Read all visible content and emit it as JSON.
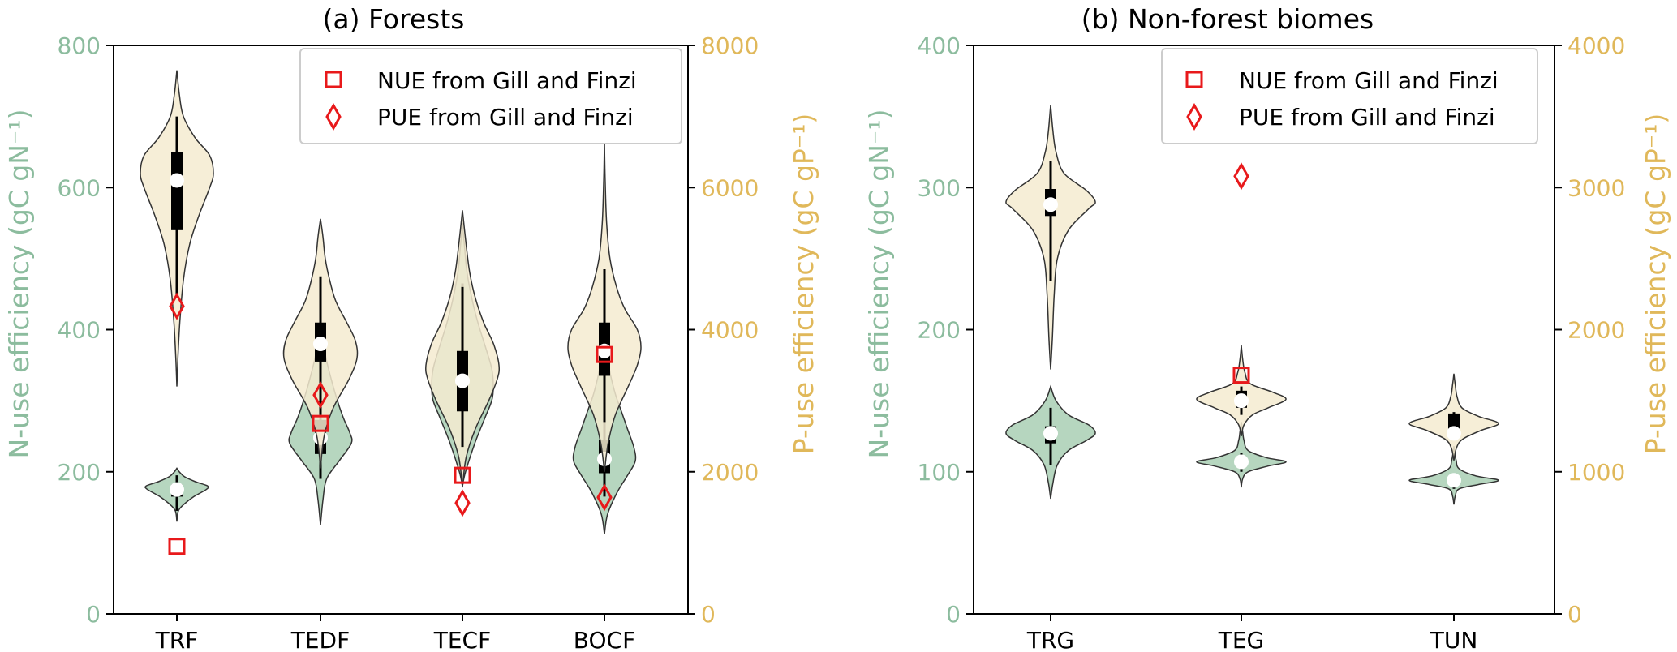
{
  "colors": {
    "nitrogen": "#8cbc9e",
    "phosphorus": "#e0b85a",
    "n_fill": "#a9cfb4",
    "p_fill": "#f5ebd0",
    "marker": "#e8191b",
    "axis": "#000000"
  },
  "legend": {
    "nue_label": "NUE from Gill and Finzi",
    "pue_label": "PUE from Gill and Finzi"
  },
  "chart_data": [
    {
      "type": "violin",
      "title": "(a) Forests",
      "categories": [
        "TRF",
        "TEDF",
        "TECF",
        "BOCF"
      ],
      "left_axis": {
        "label": "N-use efficiency (gC gN⁻¹)",
        "ylim": [
          0,
          800
        ],
        "ticks": [
          "0",
          "200",
          "400",
          "600",
          "800"
        ],
        "tick_values": [
          0,
          200,
          400,
          600,
          800
        ]
      },
      "right_axis": {
        "label": "P-use efficiency (gC gP⁻¹)",
        "ylim": [
          0,
          8000
        ],
        "ticks": [
          "0",
          "2000",
          "4000",
          "6000",
          "8000"
        ],
        "tick_values": [
          0,
          2000,
          4000,
          6000,
          8000
        ]
      },
      "legend_position": "top-right",
      "n_violins": [
        {
          "category": "TRF",
          "min": 130,
          "max": 205,
          "q1": 165,
          "q3": 182,
          "median": 175,
          "wlo": 145,
          "whi": 195,
          "shape": [
            [
              130,
              0
            ],
            [
              145,
              0.05
            ],
            [
              155,
              0.25
            ],
            [
              165,
              0.55
            ],
            [
              175,
              0.95
            ],
            [
              180,
              1.0
            ],
            [
              186,
              0.6
            ],
            [
              193,
              0.25
            ],
            [
              200,
              0.08
            ],
            [
              205,
              0
            ]
          ]
        },
        {
          "category": "TEDF",
          "min": 125,
          "max": 410,
          "q1": 225,
          "q3": 273,
          "median": 248,
          "wlo": 190,
          "whi": 330,
          "shape": [
            [
              125,
              0
            ],
            [
              160,
              0.08
            ],
            [
              190,
              0.2
            ],
            [
              215,
              0.6
            ],
            [
              240,
              1.0
            ],
            [
              255,
              0.95
            ],
            [
              275,
              0.75
            ],
            [
              300,
              0.55
            ],
            [
              330,
              0.35
            ],
            [
              360,
              0.18
            ],
            [
              390,
              0.07
            ],
            [
              410,
              0
            ]
          ]
        },
        {
          "category": "TECF",
          "min": 180,
          "max": 550,
          "q1": 290,
          "q3": 370,
          "median": 328,
          "wlo": 240,
          "whi": 465,
          "shape": [
            [
              180,
              0
            ],
            [
              200,
              0.1
            ],
            [
              240,
              0.4
            ],
            [
              275,
              0.72
            ],
            [
              300,
              0.95
            ],
            [
              320,
              1.0
            ],
            [
              345,
              0.95
            ],
            [
              375,
              0.75
            ],
            [
              410,
              0.5
            ],
            [
              445,
              0.3
            ],
            [
              480,
              0.15
            ],
            [
              515,
              0.07
            ],
            [
              550,
              0
            ]
          ]
        },
        {
          "category": "BOCF",
          "min": 112,
          "max": 410,
          "q1": 198,
          "q3": 245,
          "median": 218,
          "wlo": 165,
          "whi": 295,
          "shape": [
            [
              112,
              0
            ],
            [
              140,
              0.1
            ],
            [
              170,
              0.4
            ],
            [
              195,
              0.75
            ],
            [
              215,
              1.0
            ],
            [
              235,
              0.95
            ],
            [
              260,
              0.75
            ],
            [
              285,
              0.55
            ],
            [
              310,
              0.35
            ],
            [
              340,
              0.18
            ],
            [
              375,
              0.06
            ],
            [
              410,
              0
            ]
          ]
        }
      ],
      "p_violins": [
        {
          "category": "TRF",
          "min": 3200,
          "max": 7650,
          "q1": 5400,
          "q3": 6500,
          "median": 6100,
          "wlo": 4500,
          "whi": 7000,
          "shape": [
            [
              3200,
              0
            ],
            [
              3600,
              0.03
            ],
            [
              4100,
              0.08
            ],
            [
              4700,
              0.18
            ],
            [
              5200,
              0.35
            ],
            [
              5600,
              0.6
            ],
            [
              6000,
              0.9
            ],
            [
              6200,
              1.0
            ],
            [
              6450,
              0.9
            ],
            [
              6700,
              0.5
            ],
            [
              7000,
              0.18
            ],
            [
              7300,
              0.07
            ],
            [
              7650,
              0
            ]
          ]
        },
        {
          "category": "TEDF",
          "min": 2050,
          "max": 5560,
          "q1": 3550,
          "q3": 4100,
          "median": 3800,
          "wlo": 2800,
          "whi": 4750,
          "shape": [
            [
              2050,
              0
            ],
            [
              2500,
              0.1
            ],
            [
              2900,
              0.35
            ],
            [
              3300,
              0.78
            ],
            [
              3600,
              1.0
            ],
            [
              3850,
              0.95
            ],
            [
              4100,
              0.72
            ],
            [
              4400,
              0.42
            ],
            [
              4700,
              0.25
            ],
            [
              5000,
              0.13
            ],
            [
              5300,
              0.07
            ],
            [
              5560,
              0
            ]
          ]
        },
        {
          "category": "TECF",
          "min": 1780,
          "max": 5680,
          "q1": 2850,
          "q3": 3700,
          "median": 3280,
          "wlo": 2350,
          "whi": 4600,
          "shape": [
            [
              1780,
              0
            ],
            [
              2200,
              0.1
            ],
            [
              2600,
              0.35
            ],
            [
              3000,
              0.72
            ],
            [
              3300,
              0.95
            ],
            [
              3500,
              1.0
            ],
            [
              3800,
              0.85
            ],
            [
              4100,
              0.58
            ],
            [
              4450,
              0.35
            ],
            [
              4800,
              0.2
            ],
            [
              5200,
              0.1
            ],
            [
              5680,
              0
            ]
          ]
        },
        {
          "category": "BOCF",
          "min": 2000,
          "max": 6700,
          "q1": 3350,
          "q3": 4100,
          "median": 3700,
          "wlo": 2700,
          "whi": 4850,
          "shape": [
            [
              2000,
              0
            ],
            [
              2400,
              0.1
            ],
            [
              2800,
              0.3
            ],
            [
              3200,
              0.65
            ],
            [
              3500,
              0.9
            ],
            [
              3750,
              1.0
            ],
            [
              4000,
              0.9
            ],
            [
              4300,
              0.55
            ],
            [
              4600,
              0.33
            ],
            [
              5000,
              0.15
            ],
            [
              5500,
              0.06
            ],
            [
              6100,
              0.02
            ],
            [
              6700,
              0
            ]
          ]
        }
      ],
      "nue_markers": [
        {
          "category": "TRF",
          "value": 95
        },
        {
          "category": "TEDF",
          "value": 268
        },
        {
          "category": "TECF",
          "value": 195
        },
        {
          "category": "BOCF",
          "value": 365
        }
      ],
      "pue_markers": [
        {
          "category": "TRF",
          "value": 4330
        },
        {
          "category": "TEDF",
          "value": 3080
        },
        {
          "category": "TECF",
          "value": 1560
        },
        {
          "category": "BOCF",
          "value": 1640
        }
      ]
    },
    {
      "type": "violin",
      "title": "(b) Non-forest biomes",
      "categories": [
        "TRG",
        "TEG",
        "TUN"
      ],
      "left_axis": {
        "label": "N-use efficiency (gC gN⁻¹)",
        "ylim": [
          0,
          400
        ],
        "ticks": [
          "0",
          "100",
          "200",
          "300",
          "400"
        ],
        "tick_values": [
          0,
          100,
          200,
          300,
          400
        ]
      },
      "right_axis": {
        "label": "P-use efficiency (gC gP⁻¹)",
        "ylim": [
          0,
          4000
        ],
        "ticks": [
          "0",
          "1000",
          "2000",
          "3000",
          "4000"
        ],
        "tick_values": [
          0,
          1000,
          2000,
          3000,
          4000
        ]
      },
      "legend_position": "top-right",
      "n_violins": [
        {
          "category": "TRG",
          "min": 81,
          "max": 160,
          "q1": 120,
          "q3": 132,
          "median": 127,
          "wlo": 105,
          "whi": 145,
          "shape": [
            [
              81,
              0
            ],
            [
              92,
              0.05
            ],
            [
              105,
              0.15
            ],
            [
              115,
              0.4
            ],
            [
              122,
              0.8
            ],
            [
              127,
              1.0
            ],
            [
              133,
              0.85
            ],
            [
              140,
              0.4
            ],
            [
              150,
              0.12
            ],
            [
              160,
              0
            ]
          ]
        },
        {
          "category": "TEG",
          "min": 89,
          "max": 135,
          "q1": 105,
          "q3": 110,
          "median": 107,
          "wlo": 100,
          "whi": 113,
          "shape": [
            [
              89,
              0
            ],
            [
              95,
              0.03
            ],
            [
              100,
              0.15
            ],
            [
              104,
              0.6
            ],
            [
              107,
              1.0
            ],
            [
              110,
              0.55
            ],
            [
              115,
              0.15
            ],
            [
              122,
              0.06
            ],
            [
              128,
              0.03
            ],
            [
              135,
              0
            ]
          ]
        },
        {
          "category": "TUN",
          "min": 77,
          "max": 118,
          "q1": 92,
          "q3": 96,
          "median": 94,
          "wlo": 88,
          "whi": 99,
          "shape": [
            [
              77,
              0
            ],
            [
              83,
              0.03
            ],
            [
              88,
              0.12
            ],
            [
              91,
              0.55
            ],
            [
              94,
              1.0
            ],
            [
              97,
              0.5
            ],
            [
              102,
              0.12
            ],
            [
              108,
              0.05
            ],
            [
              113,
              0.02
            ],
            [
              118,
              0
            ]
          ]
        }
      ],
      "p_violins": [
        {
          "category": "TRG",
          "min": 1720,
          "max": 3580,
          "q1": 2800,
          "q3": 2990,
          "median": 2880,
          "wlo": 2340,
          "whi": 3190,
          "shape": [
            [
              1720,
              0
            ],
            [
              1950,
              0.04
            ],
            [
              2250,
              0.08
            ],
            [
              2500,
              0.15
            ],
            [
              2700,
              0.4
            ],
            [
              2850,
              0.85
            ],
            [
              2900,
              1.0
            ],
            [
              2980,
              0.8
            ],
            [
              3100,
              0.3
            ],
            [
              3250,
              0.12
            ],
            [
              3400,
              0.05
            ],
            [
              3580,
              0
            ]
          ]
        },
        {
          "category": "TEG",
          "min": 1250,
          "max": 1890,
          "q1": 1450,
          "q3": 1570,
          "median": 1500,
          "wlo": 1400,
          "whi": 1600,
          "shape": [
            [
              1250,
              0
            ],
            [
              1330,
              0.06
            ],
            [
              1400,
              0.25
            ],
            [
              1450,
              0.6
            ],
            [
              1510,
              1.0
            ],
            [
              1560,
              0.7
            ],
            [
              1620,
              0.2
            ],
            [
              1700,
              0.08
            ],
            [
              1790,
              0.03
            ],
            [
              1890,
              0
            ]
          ]
        },
        {
          "category": "TUN",
          "min": 1080,
          "max": 1690,
          "q1": 1260,
          "q3": 1410,
          "median": 1270,
          "wlo": 1230,
          "whi": 1420,
          "shape": [
            [
              1080,
              0
            ],
            [
              1170,
              0.06
            ],
            [
              1230,
              0.2
            ],
            [
              1290,
              0.6
            ],
            [
              1340,
              1.0
            ],
            [
              1390,
              0.55
            ],
            [
              1450,
              0.18
            ],
            [
              1530,
              0.07
            ],
            [
              1610,
              0.03
            ],
            [
              1690,
              0
            ]
          ]
        }
      ],
      "nue_markers": [
        {
          "category": "TEG",
          "value": 168
        }
      ],
      "pue_markers": [
        {
          "category": "TEG",
          "value": 3080
        }
      ]
    }
  ]
}
